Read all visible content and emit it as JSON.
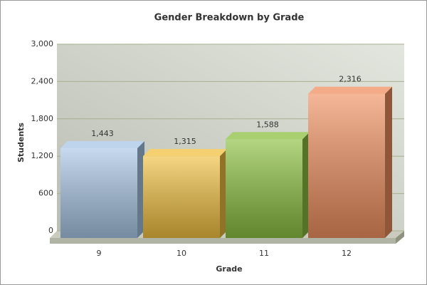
{
  "chart_data": {
    "type": "bar3d",
    "title": "Gender Breakdown by Grade",
    "x_label": "Grade",
    "y_label": "Students",
    "categories": [
      "9",
      "10",
      "11",
      "12"
    ],
    "values": [
      1443,
      1315,
      1588,
      2316
    ],
    "value_labels": [
      "1,443",
      "1,315",
      "1,588",
      "2,316"
    ],
    "colors": [
      "#a9c6e6",
      "#f0c040",
      "#8cc040",
      "#f09060"
    ],
    "ylim": [
      0,
      3000
    ],
    "yticks": [
      0,
      600,
      {
        "value": 1200,
        "label": "1,200"
      },
      {
        "value": 1800,
        "label": "1,800"
      },
      {
        "value": 2400,
        "label": "2,400"
      },
      {
        "value": 3000,
        "label": "3,000"
      }
    ],
    "grid": true
  }
}
